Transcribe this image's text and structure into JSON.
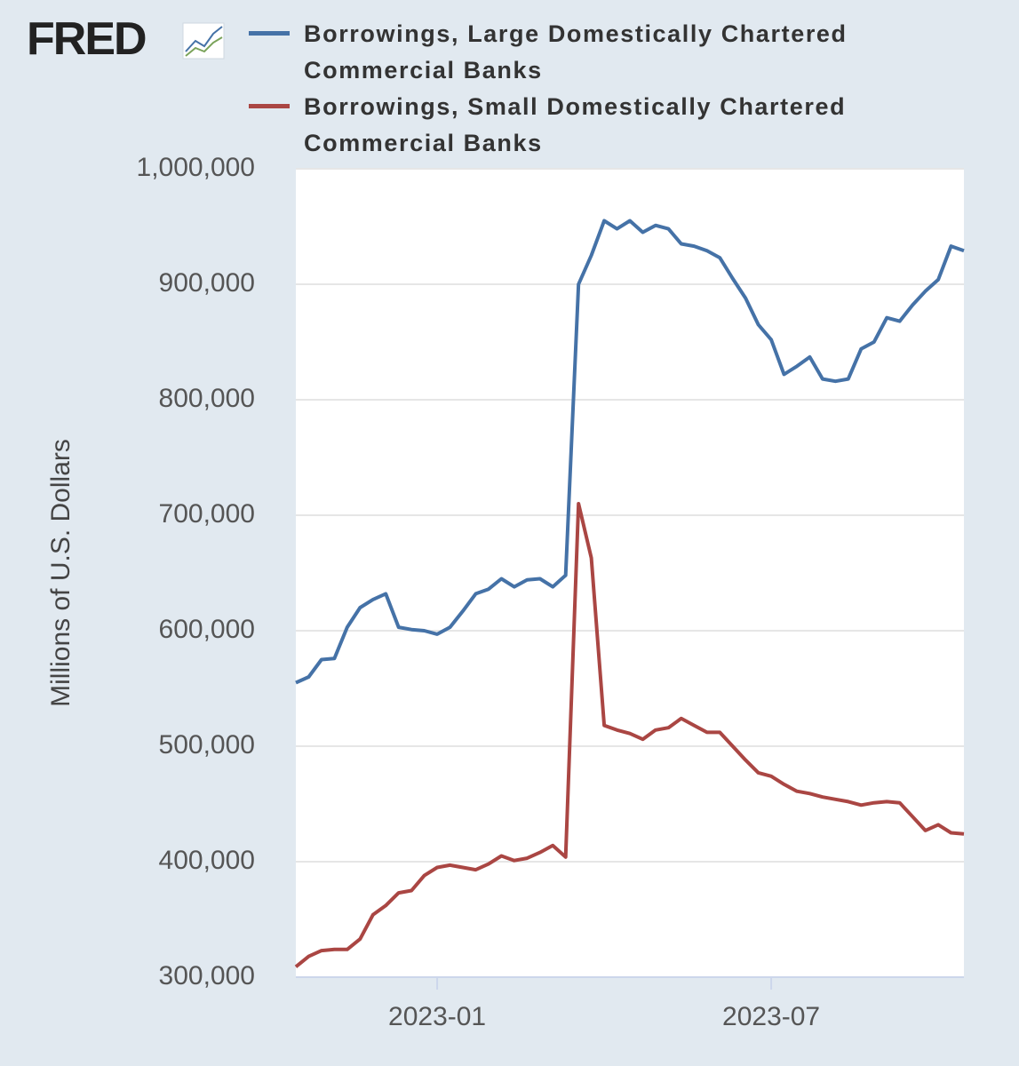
{
  "logo": "FRED",
  "chart_data": {
    "type": "line",
    "ylabel": "Millions of U.S. Dollars",
    "categories": [
      null,
      null,
      null,
      null,
      null,
      null,
      null,
      null,
      null,
      null,
      null,
      "2023-01",
      null,
      null,
      null,
      null,
      null,
      null,
      null,
      null,
      null,
      null,
      null,
      null,
      null,
      null,
      null,
      null,
      null,
      null,
      null,
      null,
      null,
      null,
      null,
      null,
      null,
      "2023-07",
      null,
      null,
      null,
      null,
      null,
      null,
      null,
      null,
      null,
      null,
      null,
      null,
      null,
      null,
      null
    ],
    "xticks": [
      11,
      37
    ],
    "ylim": [
      300000,
      1000000
    ],
    "yticks": [
      {
        "value": 300000,
        "label": "300,000"
      },
      {
        "value": 400000,
        "label": "400,000"
      },
      {
        "value": 500000,
        "label": "500,000"
      },
      {
        "value": 600000,
        "label": "600,000"
      },
      {
        "value": 700000,
        "label": "700,000"
      },
      {
        "value": 800000,
        "label": "800,000"
      },
      {
        "value": 900000,
        "label": "900,000"
      },
      {
        "value": 1000000,
        "label": "1,000,000"
      }
    ],
    "grid": true,
    "series": [
      {
        "name": "Borrowings, Large Domestically Chartered Commercial Banks",
        "color": "#4572a7",
        "values": [
          555000,
          560000,
          575000,
          576000,
          603000,
          620000,
          627000,
          632000,
          603000,
          601000,
          600000,
          597000,
          603000,
          617000,
          632000,
          636000,
          645000,
          638000,
          644000,
          645000,
          638000,
          648000,
          900000,
          925000,
          955000,
          948000,
          955000,
          945000,
          951000,
          948000,
          935000,
          933000,
          929000,
          923000,
          905000,
          888000,
          865000,
          852000,
          822000,
          829000,
          837000,
          818000,
          816000,
          818000,
          844000,
          850000,
          871000,
          868000,
          882000,
          894000,
          904000,
          933000,
          929000
        ]
      },
      {
        "name": "Borrowings, Small Domestically Chartered Commercial Banks",
        "color": "#aa4643",
        "values": [
          309000,
          318000,
          323000,
          324000,
          324000,
          333000,
          354000,
          362000,
          373000,
          375000,
          388000,
          395000,
          397000,
          395000,
          393000,
          398000,
          405000,
          401000,
          403000,
          408000,
          414000,
          404000,
          710000,
          663000,
          518000,
          514000,
          511000,
          506000,
          514000,
          516000,
          524000,
          518000,
          512000,
          512000,
          500000,
          488000,
          477000,
          474000,
          467000,
          461000,
          459000,
          456000,
          454000,
          452000,
          449000,
          451000,
          452000,
          451000,
          439000,
          427000,
          432000,
          425000,
          424000
        ]
      }
    ]
  }
}
